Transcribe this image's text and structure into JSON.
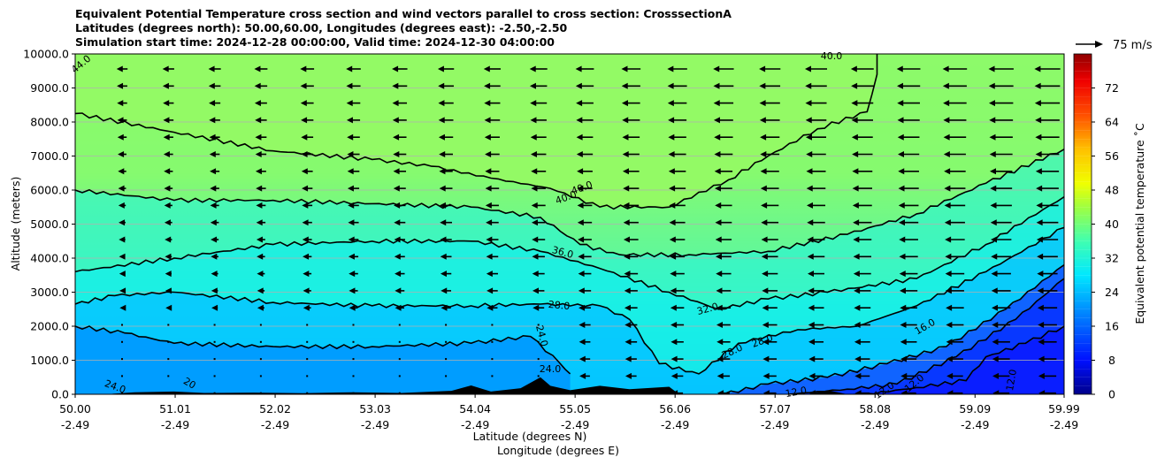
{
  "chart_data": {
    "type": "contourf",
    "title_lines": [
      "Equivalent Potential Temperature cross section and wind vectors parallel to cross section: CrosssectionA",
      "Latitudes (degrees north): 50.00,60.00, Longitudes (degrees east): -2.50,-2.50",
      "Simulation start time: 2024-12-28 00:00:00, Valid time: 2024-12-30 04:00:00"
    ],
    "ylabel": "Altitude (meters)",
    "xlabel_line1": "Latitude (degrees N)",
    "xlabel_line2": "Longitude (degrees E)",
    "ylim": [
      0,
      10000
    ],
    "y_ticks": [
      "0.0",
      "1000.0",
      "2000.0",
      "3000.0",
      "4000.0",
      "5000.0",
      "6000.0",
      "7000.0",
      "8000.0",
      "9000.0",
      "10000.0"
    ],
    "x_ticks": [
      {
        "lat": "50.00",
        "lon": "-2.49"
      },
      {
        "lat": "51.01",
        "lon": "-2.49"
      },
      {
        "lat": "52.02",
        "lon": "-2.49"
      },
      {
        "lat": "53.03",
        "lon": "-2.49"
      },
      {
        "lat": "54.04",
        "lon": "-2.49"
      },
      {
        "lat": "55.05",
        "lon": "-2.49"
      },
      {
        "lat": "56.06",
        "lon": "-2.49"
      },
      {
        "lat": "57.07",
        "lon": "-2.49"
      },
      {
        "lat": "58.08",
        "lon": "-2.49"
      },
      {
        "lat": "59.09",
        "lon": "-2.49"
      },
      {
        "lat": "59.99",
        "lon": "-2.49"
      }
    ],
    "colorbar": {
      "label": "Equivalent potential temperature $^\\circ$C",
      "label_display": "Equivalent potential temperature ˚C",
      "ticks": [
        "0",
        "8",
        "16",
        "24",
        "32",
        "40",
        "48",
        "56",
        "64",
        "72"
      ],
      "range": [
        0,
        80
      ]
    },
    "quiver_key_label": "75 m/s",
    "contour_labels": [
      "44.0",
      "40.0",
      "40.0",
      "40.0",
      "36.0",
      "32.0",
      "28.0",
      "28.0",
      "28.0",
      "24.0",
      "24.0",
      "24.0",
      "20",
      "16.0",
      "12.0",
      "12.0",
      "12.0",
      "12.0"
    ],
    "contour_lines": [
      {
        "level": 40,
        "points": [
          [
            50.0,
            8250
          ],
          [
            51.0,
            7700
          ],
          [
            52.0,
            7150
          ],
          [
            53.0,
            6900
          ],
          [
            53.6,
            6700
          ],
          [
            54.2,
            6350
          ],
          [
            54.8,
            6050
          ],
          [
            55.3,
            5500
          ],
          [
            56.0,
            5500
          ],
          [
            56.6,
            6300
          ],
          [
            57.0,
            7000
          ],
          [
            57.5,
            7800
          ],
          [
            58.0,
            8300
          ],
          [
            58.1,
            9400
          ],
          [
            58.1,
            10000
          ]
        ]
      },
      {
        "level": 36,
        "points": [
          [
            50.0,
            6000
          ],
          [
            51.0,
            5700
          ],
          [
            52.0,
            5700
          ],
          [
            53.0,
            5600
          ],
          [
            54.0,
            5500
          ],
          [
            54.7,
            5200
          ],
          [
            55.1,
            4400
          ],
          [
            55.5,
            4100
          ],
          [
            56.2,
            4100
          ],
          [
            57.0,
            4200
          ],
          [
            57.8,
            4700
          ],
          [
            58.5,
            5300
          ],
          [
            59.2,
            6200
          ],
          [
            59.99,
            7200
          ]
        ]
      },
      {
        "level": 32,
        "points": [
          [
            50.0,
            3600
          ],
          [
            51.0,
            4000
          ],
          [
            52.0,
            4400
          ],
          [
            53.0,
            4500
          ],
          [
            54.0,
            4500
          ],
          [
            54.7,
            4200
          ],
          [
            55.3,
            3700
          ],
          [
            56.0,
            3000
          ],
          [
            56.5,
            2500
          ],
          [
            57.0,
            2800
          ],
          [
            57.6,
            3000
          ],
          [
            58.5,
            3400
          ],
          [
            59.2,
            4400
          ],
          [
            59.99,
            5800
          ]
        ]
      },
      {
        "level": 28,
        "points": [
          [
            50.0,
            2650
          ],
          [
            50.4,
            2900
          ],
          [
            51.0,
            3000
          ],
          [
            52.0,
            2700
          ],
          [
            53.0,
            2600
          ],
          [
            54.0,
            2600
          ],
          [
            54.7,
            2650
          ],
          [
            55.3,
            2600
          ],
          [
            55.6,
            2200
          ],
          [
            55.9,
            900
          ],
          [
            56.3,
            600
          ],
          [
            56.7,
            1500
          ],
          [
            57.3,
            1900
          ],
          [
            57.9,
            2000
          ],
          [
            58.5,
            2600
          ],
          [
            59.2,
            3600
          ],
          [
            59.99,
            4900
          ]
        ]
      },
      {
        "level": 24,
        "points": [
          [
            50.0,
            2000
          ],
          [
            50.5,
            1800
          ],
          [
            51.0,
            1500
          ],
          [
            52.0,
            1400
          ],
          [
            53.0,
            1400
          ],
          [
            54.0,
            1500
          ],
          [
            54.6,
            1700
          ],
          [
            54.9,
            900
          ],
          [
            55.0,
            600
          ]
        ]
      },
      {
        "level": 20,
        "points": [
          [
            56.55,
            0
          ],
          [
            57.0,
            300
          ],
          [
            57.6,
            500
          ],
          [
            58.2,
            900
          ],
          [
            58.8,
            1400
          ],
          [
            59.4,
            2500
          ],
          [
            59.99,
            3800
          ]
        ]
      },
      {
        "level": 16,
        "points": [
          [
            57.2,
            0
          ],
          [
            57.8,
            150
          ],
          [
            58.3,
            300
          ],
          [
            58.9,
            1100
          ],
          [
            59.5,
            2200
          ],
          [
            59.99,
            3400
          ]
        ]
      },
      {
        "level": 12,
        "points": [
          [
            58.0,
            0
          ],
          [
            58.5,
            200
          ],
          [
            59.0,
            400
          ],
          [
            59.2,
            1100
          ],
          [
            59.6,
            1500
          ],
          [
            59.99,
            2000
          ]
        ]
      }
    ]
  }
}
